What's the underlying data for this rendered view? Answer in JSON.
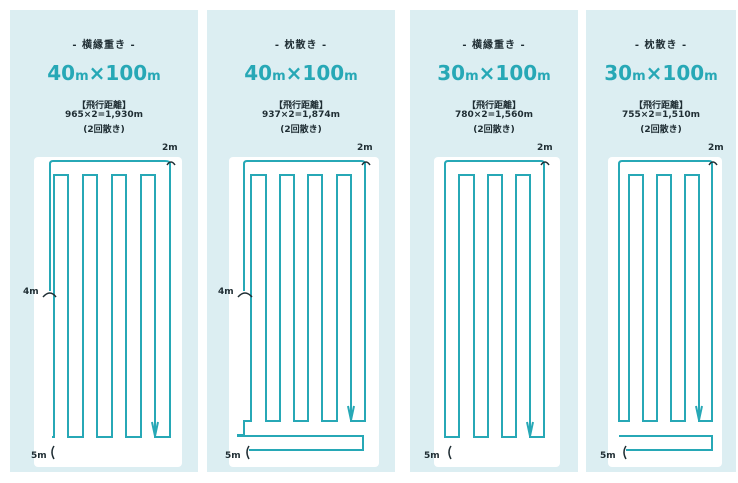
{
  "panels": [
    {
      "kind": "- 横縁重き -",
      "dims_a": "40",
      "dims_u1": "m",
      "dims_x": "×",
      "dims_b": "100",
      "dims_u2": "m",
      "label": "【飛行距離】",
      "calc": "965×2=1,930m",
      "note": "(2回散き)",
      "marks": {
        "top": "2m",
        "side": "4m",
        "bottom": "5m"
      }
    },
    {
      "kind": "- 枕散き -",
      "dims_a": "40",
      "dims_u1": "m",
      "dims_x": "×",
      "dims_b": "100",
      "dims_u2": "m",
      "label": "【飛行距離】",
      "calc": "937×2=1,874m",
      "note": "(2回散き)",
      "marks": {
        "top": "2m",
        "side": "4m",
        "bottom": "5m"
      }
    },
    {
      "kind": "- 横縁重き -",
      "dims_a": "30",
      "dims_u1": "m",
      "dims_x": "×",
      "dims_b": "100",
      "dims_u2": "m",
      "label": "【飛行距離】",
      "calc": "780×2=1,560m",
      "note": "(2回散き)",
      "marks": {
        "top": "2m",
        "bottom": "5m"
      }
    },
    {
      "kind": "- 枕散き -",
      "dims_a": "30",
      "dims_u1": "m",
      "dims_x": "×",
      "dims_b": "100",
      "dims_u2": "m",
      "label": "【飛行距離】",
      "calc": "755×2=1,510m",
      "note": "(2回散き)",
      "marks": {
        "top": "2m",
        "bottom": "5m"
      }
    }
  ],
  "colors": {
    "background": "#dceef2",
    "route": "#27a8b6",
    "field": "#ffffff",
    "text": "#1f2d33"
  }
}
